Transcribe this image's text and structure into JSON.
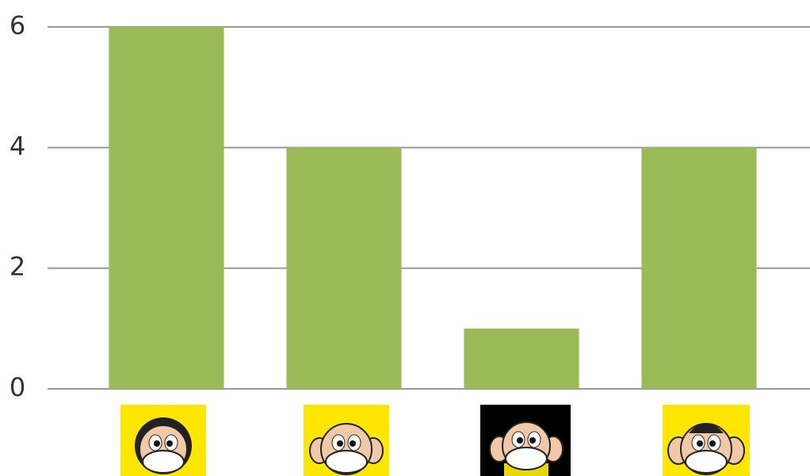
{
  "chart_data": {
    "type": "bar",
    "categories": [
      null,
      null,
      null,
      null
    ],
    "values": [
      6,
      4,
      1,
      4
    ],
    "color": "#9bbb59",
    "ylim": [
      0,
      6
    ],
    "yticks": [
      0,
      2,
      4,
      6
    ],
    "grid": true
  }
}
